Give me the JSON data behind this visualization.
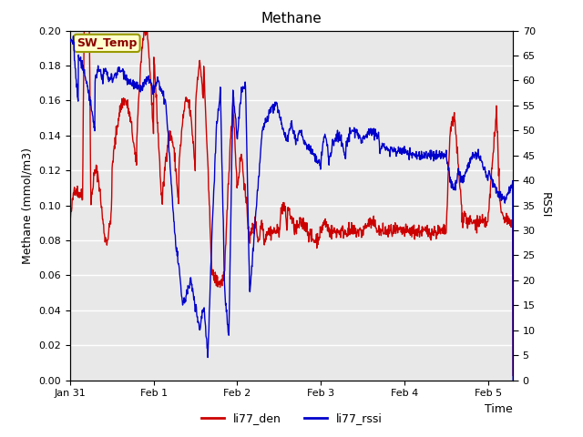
{
  "title": "Methane",
  "xlabel": "Time",
  "ylabel_left": "Methane (mmol/m3)",
  "ylabel_right": "RSSI",
  "annotation": "SW_Temp",
  "ylim_left": [
    0.0,
    0.2
  ],
  "ylim_right": [
    0,
    70
  ],
  "xtick_labels": [
    "Jan 31",
    "Feb 1",
    "Feb 2",
    "Feb 3",
    "Feb 4",
    "Feb 5"
  ],
  "legend_labels": [
    "li77_den",
    "li77_rssi"
  ],
  "legend_colors": [
    "#cc0000",
    "#0000cc"
  ],
  "line_color_den": "#cc0000",
  "line_color_rssi": "#0000cc",
  "fig_facecolor": "#ffffff",
  "plot_bg_color": "#e8e8e8",
  "annotation_bg": "#ffffcc",
  "annotation_fg": "#8b0000",
  "annotation_border": "#999900"
}
